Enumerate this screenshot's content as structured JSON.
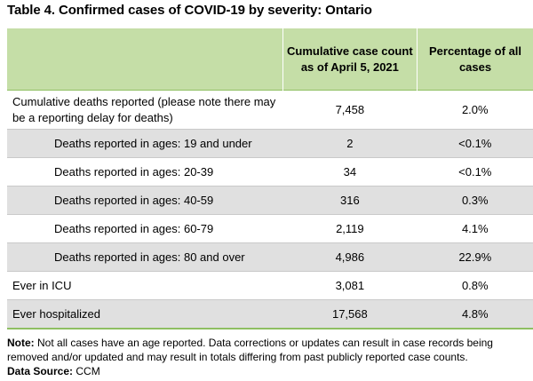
{
  "table_title": "Table 4. Confirmed cases of COVID-19 by severity: Ontario",
  "headers": {
    "col1": "",
    "col2": "Cumulative case count as of April 5, 2021",
    "col3": "Percentage of all cases"
  },
  "rows": [
    {
      "label": "Cumulative deaths reported (please note there may be a reporting delay for deaths)",
      "count": "7,458",
      "pct": "2.0%"
    },
    {
      "label": "Deaths reported in ages: 19 and under",
      "count": "2",
      "pct": "<0.1%"
    },
    {
      "label": "Deaths reported in ages: 20-39",
      "count": "34",
      "pct": "<0.1%"
    },
    {
      "label": "Deaths reported in ages: 40-59",
      "count": "316",
      "pct": "0.3%"
    },
    {
      "label": "Deaths reported in ages: 60-79",
      "count": "2,119",
      "pct": "4.1%"
    },
    {
      "label": "Deaths reported in ages: 80 and over",
      "count": "4,986",
      "pct": "22.9%"
    },
    {
      "label": "Ever in ICU",
      "count": "3,081",
      "pct": "0.8%"
    },
    {
      "label": "Ever hospitalized",
      "count": "17,568",
      "pct": "4.8%"
    }
  ],
  "footer": {
    "note_label": "Note:",
    "note_text": " Not all cases have an age reported. Data corrections or updates can result in case records being removed and/or updated and may result in totals differing from past publicly reported case counts.",
    "source_label": "Data Source:",
    "source_text": " CCM"
  },
  "colors": {
    "header_bg": "#c5dea7",
    "shaded_row_bg": "#e0e0e0",
    "rule_green": "#8fbf62"
  }
}
